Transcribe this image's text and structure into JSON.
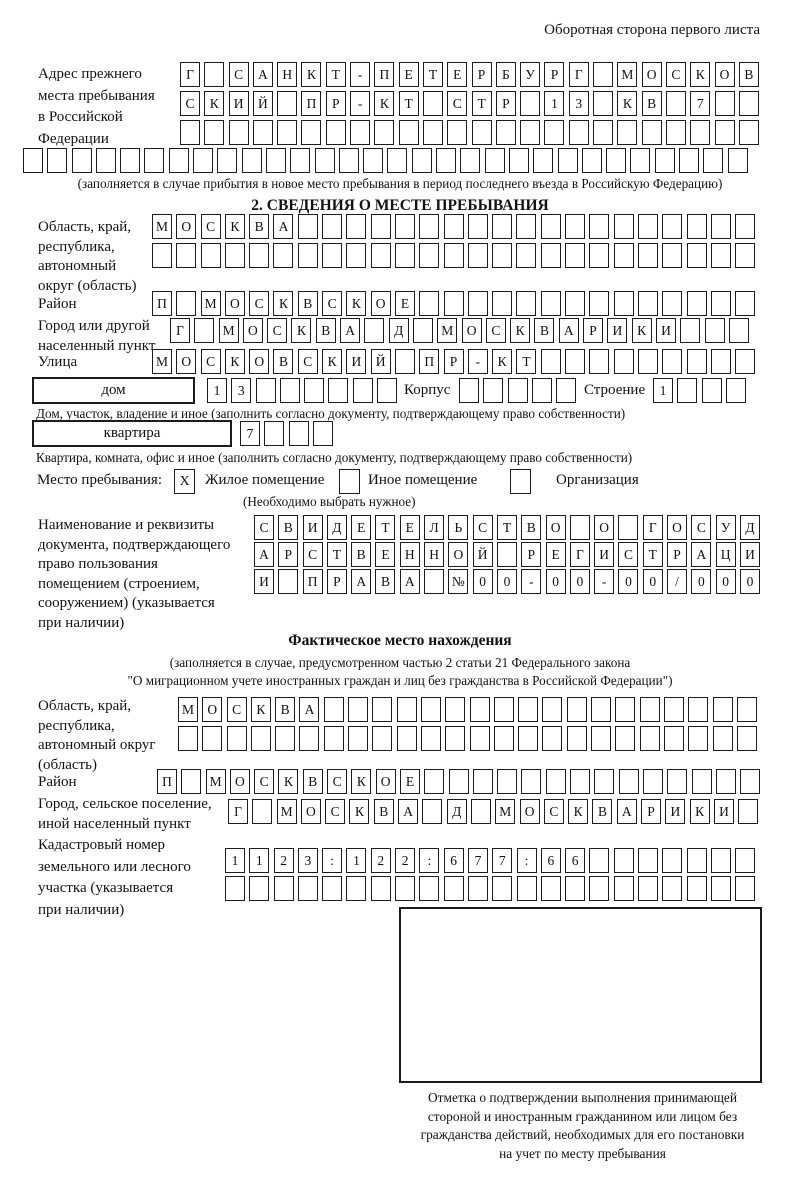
{
  "header": {
    "note": "Оборотная сторона первого листа"
  },
  "prev_address": {
    "label": "Адрес прежнего\nместа пребывания\nв Российской\nФедерации",
    "row1": {
      "cells": [
        "Г",
        "",
        "С",
        "А",
        "Н",
        "К",
        "Т",
        "-",
        "П",
        "Е",
        "Т",
        "Е",
        "Р",
        "Б",
        "У",
        "Р",
        "Г",
        "",
        "М",
        "О",
        "С",
        "К",
        "О",
        "В"
      ]
    },
    "row2": {
      "cells": [
        "С",
        "К",
        "И",
        "Й",
        "",
        "П",
        "Р",
        "-",
        "К",
        "Т",
        "",
        "С",
        "Т",
        "Р",
        "",
        "1",
        "3",
        "",
        "К",
        "В",
        "",
        "7",
        "",
        ""
      ]
    },
    "row3": {
      "count": 24
    },
    "row4": {
      "count": 30
    },
    "note": "(заполняется в случае прибытия в новое место пребывания в период последнего въезда в Российскую Федерацию)"
  },
  "section2": {
    "title": "2. СВЕДЕНИЯ О МЕСТЕ ПРЕБЫВАНИЯ",
    "region": {
      "label": "Область, край,\nреспублика,\nавтономный\nокруг (область)",
      "row1": {
        "cells": [
          "М",
          "О",
          "С",
          "К",
          "В",
          "А"
        ],
        "count": 25
      },
      "row2": {
        "count": 25
      }
    },
    "district": {
      "label": "Район",
      "row": {
        "cells": [
          "П",
          "",
          "М",
          "О",
          "С",
          "К",
          "В",
          "С",
          "К",
          "О",
          "Е"
        ],
        "count": 25
      }
    },
    "city": {
      "label": "Город или другой\nнаселенный пункт",
      "row": {
        "cells": [
          "Г",
          "",
          "М",
          "О",
          "С",
          "К",
          "В",
          "А",
          "",
          "Д",
          "",
          "М",
          "О",
          "С",
          "К",
          "В",
          "А",
          "Р",
          "И",
          "К",
          "И"
        ],
        "count": 24
      }
    },
    "street": {
      "label": "Улица",
      "row": {
        "cells": [
          "М",
          "О",
          "С",
          "К",
          "О",
          "В",
          "С",
          "К",
          "И",
          "Й",
          "",
          "П",
          "Р",
          "-",
          "К",
          "Т"
        ],
        "count": 25
      }
    },
    "house": {
      "box_label": "дом",
      "row": {
        "cells": [
          "1",
          "3"
        ],
        "count": 8
      },
      "korpus_label": "Корпус",
      "korpus_row": {
        "count": 5
      },
      "stroenie_label": "Строение",
      "stroenie_row": {
        "cells": [
          "1"
        ],
        "count": 4
      },
      "note": "Дом, участок, владение и иное (заполнить согласно документу, подтверждающему право собственности)"
    },
    "apartment": {
      "box_label": "квартира",
      "row": {
        "cells": [
          "7"
        ],
        "count": 4
      },
      "note": "Квартира, комната, офис и иное (заполнить согласно документу, подтверждающему право собственности)"
    },
    "stay_type": {
      "label": "Место пребывания:",
      "options": [
        {
          "label": "Жилое помещение",
          "mark": "X"
        },
        {
          "label": "Иное помещение",
          "mark": ""
        },
        {
          "label": "Организация",
          "mark": ""
        }
      ],
      "note": "(Необходимо выбрать нужное)"
    },
    "document": {
      "label": "Наименование и реквизиты\nдокумента, подтверждающего\nправо пользования\nпомещением (строением,\nсооружением) (указывается\nпри наличии)",
      "row1": {
        "cells": [
          "С",
          "В",
          "И",
          "Д",
          "Е",
          "Т",
          "Е",
          "Л",
          "Ь",
          "С",
          "Т",
          "В",
          "О",
          "",
          "О",
          "",
          "Г",
          "О",
          "С",
          "У",
          "Д"
        ]
      },
      "row2": {
        "cells": [
          "А",
          "Р",
          "С",
          "Т",
          "В",
          "Е",
          "Н",
          "Н",
          "О",
          "Й",
          "",
          "Р",
          "Е",
          "Г",
          "И",
          "С",
          "Т",
          "Р",
          "А",
          "Ц",
          "И"
        ]
      },
      "row3": {
        "cells": [
          "И",
          "",
          "П",
          "Р",
          "А",
          "В",
          "А",
          "",
          "№",
          "0",
          "0",
          "-",
          "0",
          "0",
          "-",
          "0",
          "0",
          "/",
          "0",
          "0",
          "0"
        ]
      }
    }
  },
  "actual_location": {
    "title": "Фактическое место нахождения",
    "note": "(заполняется в случае, предусмотренном частью 2 статьи 21 Федерального закона\n\"О миграционном учете иностранных граждан и лиц без гражданства в Российской Федерации\")",
    "region": {
      "label": "Область, край,\nреспублика,\nавтономный округ\n(область)",
      "row1": {
        "cells": [
          "М",
          "О",
          "С",
          "К",
          "В",
          "А"
        ],
        "count": 24
      },
      "row2": {
        "count": 24
      }
    },
    "district": {
      "label": "Район",
      "row": {
        "cells": [
          "П",
          "",
          "М",
          "О",
          "С",
          "К",
          "В",
          "С",
          "К",
          "О",
          "Е"
        ],
        "count": 25
      }
    },
    "city": {
      "label": "Город, сельское поселение,\nиной населенный пункт",
      "row": {
        "cells": [
          "Г",
          "",
          "М",
          "О",
          "С",
          "К",
          "В",
          "А",
          "",
          "Д",
          "",
          "М",
          "О",
          "С",
          "К",
          "В",
          "А",
          "Р",
          "И",
          "К",
          "И"
        ],
        "count": 22
      }
    },
    "cadastre": {
      "label": "Кадастровый номер\nземельного или лесного\nучастка (указывается\nпри наличии)",
      "row1": {
        "cells": [
          "1",
          "1",
          "2",
          "3",
          ":",
          "1",
          "2",
          "2",
          ":",
          "6",
          "7",
          "7",
          ":",
          "6",
          "6"
        ],
        "count": 22
      },
      "row2": {
        "count": 22
      }
    },
    "stamp_note": "Отметка о подтверждении выполнения принимающей\nстороной и иностранным гражданином или лицом без\nгражданства действий, необходимых для его постановки\nна учет по месту пребывания"
  }
}
